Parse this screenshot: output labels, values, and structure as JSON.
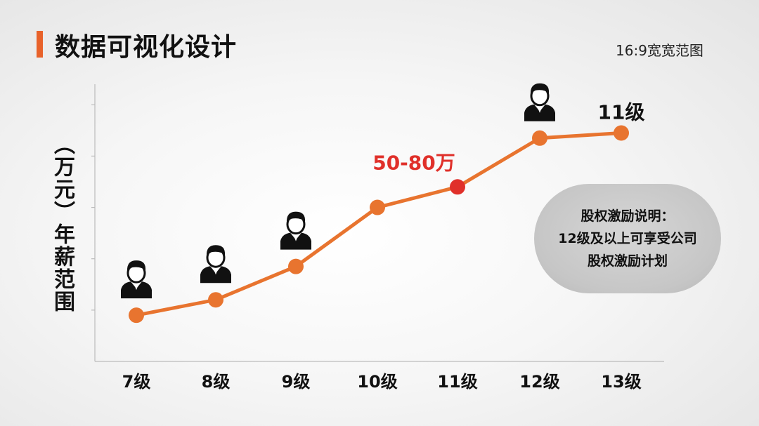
{
  "header": {
    "title": "数据可视化设计",
    "subtitle": "16:9宽宽范图",
    "accent_color": "#e8622a"
  },
  "chart_data": {
    "type": "line",
    "title": "",
    "xlabel": "",
    "ylabel": "（万元）年薪范围",
    "categories": [
      "7级",
      "8级",
      "9级",
      "10级",
      "11级",
      "12级",
      "13级"
    ],
    "values": [
      0.9,
      1.2,
      1.85,
      3.0,
      3.4,
      4.35,
      4.45
    ],
    "ylim": [
      0,
      5.4
    ],
    "y_ticks": [
      1,
      2,
      3,
      4,
      5
    ],
    "y_tick_labels_shown": false,
    "grid": false,
    "line_color": "#e8742f",
    "highlight_index": 4,
    "highlight_color": "#e0302a",
    "annotations": [
      {
        "category": "11级",
        "text": "50-80万",
        "color": "#e0302a"
      },
      {
        "category": "13级",
        "text": "11级",
        "color": "#111111"
      }
    ],
    "person_icons_at": [
      "7级",
      "8级",
      "9级",
      "12级"
    ]
  },
  "callout": {
    "lines": [
      "股权激励说明：",
      "12级及以上可享受公司股权激励计划"
    ]
  }
}
